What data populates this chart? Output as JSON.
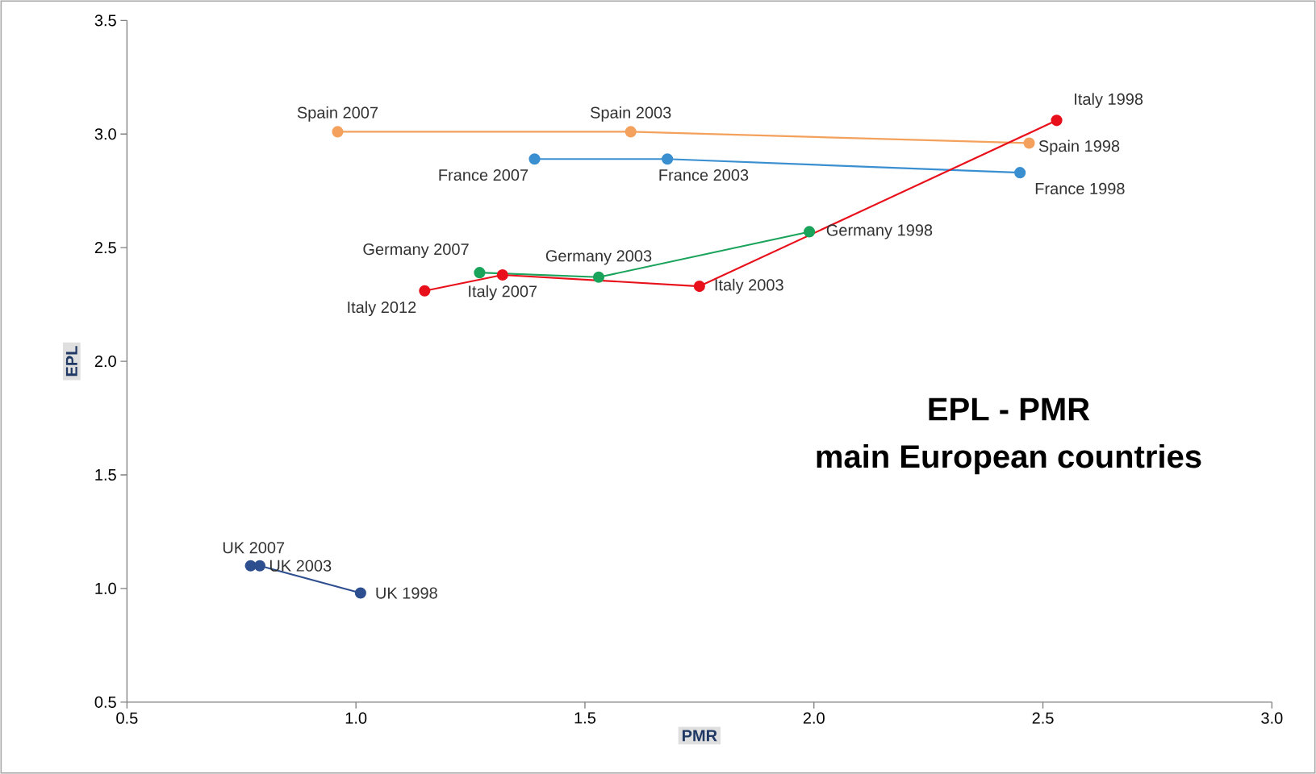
{
  "chart_data": {
    "type": "line",
    "title": "EPL - PMR",
    "subtitle": "main European countries",
    "xlabel": "PMR",
    "ylabel": "EPL",
    "marker": "circle",
    "xlim": [
      0.5,
      3.0
    ],
    "ylim": [
      0.5,
      3.5
    ],
    "xticks": [
      {
        "value": 0.5,
        "label": "0.5"
      },
      {
        "value": 1.0,
        "label": "1.0"
      },
      {
        "value": 1.5,
        "label": "1.5"
      },
      {
        "value": 2.0,
        "label": "2.0"
      },
      {
        "value": 2.5,
        "label": "2.5"
      },
      {
        "value": 3.0,
        "label": "3.0"
      }
    ],
    "yticks": [
      {
        "value": 0.5,
        "label": "0.5"
      },
      {
        "value": 1.0,
        "label": "1.0"
      },
      {
        "value": 1.5,
        "label": "1.5"
      },
      {
        "value": 2.0,
        "label": "2.0"
      },
      {
        "value": 2.5,
        "label": "2.5"
      },
      {
        "value": 3.0,
        "label": "3.0"
      },
      {
        "value": 3.5,
        "label": "3.5"
      }
    ],
    "series": [
      {
        "color": "#f4a15d",
        "x": [
          0.96,
          1.6,
          2.47
        ],
        "values": [
          3.01,
          3.01,
          2.96
        ]
      },
      {
        "color": "#3a8fd0",
        "x": [
          1.39,
          1.68,
          2.45
        ],
        "values": [
          2.89,
          2.89,
          2.83
        ]
      },
      {
        "color": "#1aa35a",
        "x": [
          1.27,
          1.53,
          1.99
        ],
        "values": [
          2.39,
          2.37,
          2.57
        ]
      },
      {
        "color": "#e8101a",
        "x": [
          1.15,
          1.32,
          1.75,
          2.53
        ],
        "values": [
          2.31,
          2.38,
          2.33,
          3.06
        ]
      },
      {
        "color": "#2e4f8f",
        "x": [
          0.77,
          0.79,
          1.01
        ],
        "values": [
          1.1,
          1.1,
          0.98
        ]
      }
    ],
    "annotations": [
      {
        "text": "Spain 2007",
        "x": 0.96,
        "y": 3.01
      },
      {
        "text": "Spain 2003",
        "x": 1.6,
        "y": 3.01
      },
      {
        "text": "Spain 1998",
        "x": 2.47,
        "y": 2.96
      },
      {
        "text": "France 2007",
        "x": 1.39,
        "y": 2.89
      },
      {
        "text": "France 2003",
        "x": 1.68,
        "y": 2.89
      },
      {
        "text": "France 1998",
        "x": 2.45,
        "y": 2.83
      },
      {
        "text": "Germany 2007",
        "x": 1.27,
        "y": 2.39
      },
      {
        "text": "Germany 2003",
        "x": 1.53,
        "y": 2.37
      },
      {
        "text": "Germany 1998",
        "x": 1.99,
        "y": 2.57
      },
      {
        "text": "Italy 2012",
        "x": 1.15,
        "y": 2.31
      },
      {
        "text": "Italy 2007",
        "x": 1.32,
        "y": 2.38
      },
      {
        "text": "Italy 2003",
        "x": 1.75,
        "y": 2.33
      },
      {
        "text": "Italy 1998",
        "x": 2.53,
        "y": 3.06
      },
      {
        "text": "UK 2007",
        "x": 0.77,
        "y": 1.1
      },
      {
        "text": "UK 2003",
        "x": 0.79,
        "y": 1.1
      },
      {
        "text": "UK 1998",
        "x": 1.01,
        "y": 0.98
      }
    ]
  }
}
